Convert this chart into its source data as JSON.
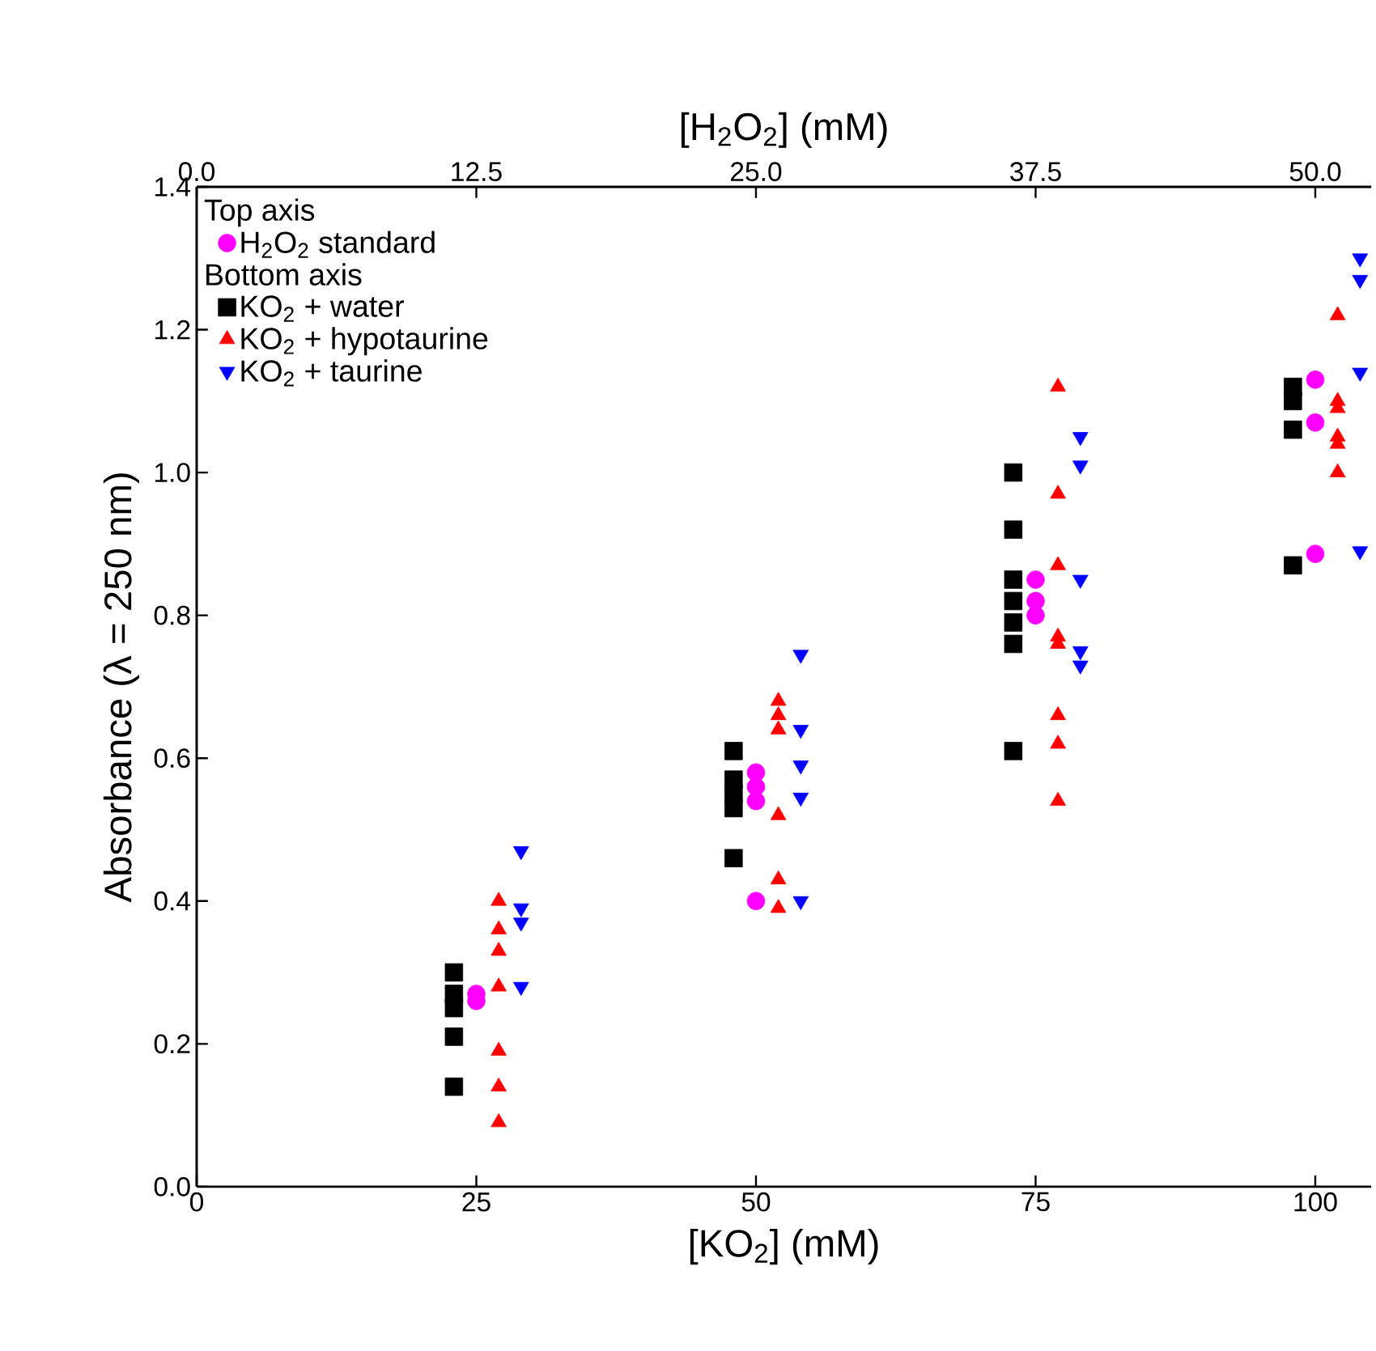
{
  "chart_data": {
    "type": "scatter",
    "xlabel": "[KO$_{2}$] (mM)",
    "x2label": "[H$_{2}$O$_{2}$] (mM)",
    "ylabel": "Absorbance (λ = 250 nm)",
    "legend_title": [
      "Top axis",
      "Bottom axis"
    ],
    "xlim": [
      0,
      105
    ],
    "xticks": [
      0,
      25,
      50,
      75,
      100
    ],
    "x2lim": [
      0,
      52.5
    ],
    "x2ticks": [
      {
        "value": 0,
        "label": "0.0"
      },
      12.5,
      {
        "value": 25,
        "label": "25.0"
      },
      37.5,
      {
        "value": 50,
        "label": "50.0"
      }
    ],
    "ylim": [
      0,
      1.4
    ],
    "yticks": [
      {
        "value": 0,
        "label": "0.0"
      },
      0.2,
      0.4,
      0.6,
      0.8,
      {
        "value": 1,
        "label": "1.0"
      },
      1.2,
      1.4
    ],
    "legend": "top left",
    "grid": false,
    "series": [
      {
        "name": "H$_{2}$O$_{2}$ standard",
        "color": "#ff00ff",
        "marker": "circle",
        "axis": "x2",
        "x": [
          12.5,
          12.5,
          25,
          25,
          25,
          25,
          37.5,
          37.5,
          37.5,
          50,
          50,
          50
        ],
        "values": [
          0.27,
          0.26,
          0.58,
          0.56,
          0.54,
          0.4,
          0.85,
          0.82,
          0.8,
          1.13,
          1.07,
          0.886
        ]
      },
      {
        "name": "KO$_{2}$ + water",
        "color": "#000000",
        "marker": "square",
        "x": [
          23,
          23,
          23,
          23,
          23,
          48,
          48,
          48,
          48,
          48,
          73,
          73,
          73,
          73,
          73,
          73,
          73,
          98,
          98,
          98,
          98
        ],
        "values": [
          0.3,
          0.27,
          0.25,
          0.21,
          0.14,
          0.61,
          0.57,
          0.55,
          0.53,
          0.46,
          1.0,
          0.92,
          0.85,
          0.82,
          0.79,
          0.76,
          0.61,
          1.12,
          1.1,
          1.06,
          0.87
        ]
      },
      {
        "name": "KO$_{2}$ + hypotaurine",
        "color": "#ff0000",
        "marker": "triangle",
        "x": [
          27,
          27,
          27,
          27,
          27,
          27,
          27,
          52,
          52,
          52,
          52,
          52,
          52,
          77,
          77,
          77,
          77,
          77,
          77,
          77,
          77,
          102,
          102,
          102,
          102,
          102,
          102
        ],
        "values": [
          0.4,
          0.36,
          0.33,
          0.28,
          0.19,
          0.14,
          0.09,
          0.68,
          0.66,
          0.64,
          0.52,
          0.43,
          0.39,
          1.12,
          0.97,
          0.87,
          0.77,
          0.76,
          0.66,
          0.62,
          0.54,
          1.22,
          1.1,
          1.09,
          1.05,
          1.04,
          1.0
        ]
      },
      {
        "name": "KO$_{2}$ + taurine",
        "color": "#0000ff",
        "marker": "triangle-down",
        "x": [
          29,
          29,
          29,
          29,
          54,
          54,
          54,
          54,
          54,
          79,
          79,
          79,
          79,
          79,
          104,
          104,
          104,
          104
        ],
        "values": [
          0.47,
          0.39,
          0.37,
          0.28,
          0.745,
          0.64,
          0.59,
          0.545,
          0.4,
          1.05,
          1.01,
          0.85,
          0.75,
          0.73,
          1.3,
          1.27,
          1.14,
          0.89
        ]
      }
    ]
  }
}
